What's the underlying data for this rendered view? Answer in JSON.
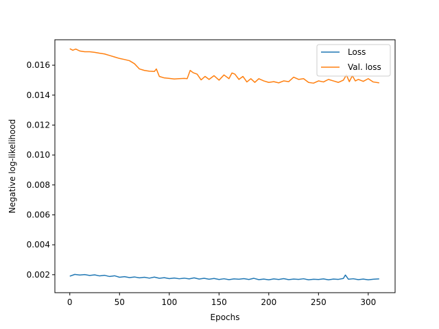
{
  "chart_data": {
    "type": "line",
    "xlabel": "Epochs",
    "ylabel": "Negative log-likelihood",
    "xlim": [
      -15,
      327
    ],
    "ylim": [
      0.0008,
      0.0177
    ],
    "xticks": [
      0,
      50,
      100,
      150,
      200,
      250,
      300
    ],
    "xtick_labels": [
      "0",
      "50",
      "100",
      "150",
      "200",
      "250",
      "300"
    ],
    "yticks": [
      0.002,
      0.004,
      0.006,
      0.008,
      0.01,
      0.012,
      0.014,
      0.016
    ],
    "ytick_labels": [
      "0.002",
      "0.004",
      "0.006",
      "0.008",
      "0.010",
      "0.012",
      "0.014",
      "0.016"
    ],
    "grid": false,
    "legend_position": "upper-right",
    "series": [
      {
        "name": "Loss",
        "color": "#1f77b4",
        "x": [
          0,
          5,
          10,
          15,
          20,
          25,
          30,
          35,
          40,
          45,
          50,
          55,
          60,
          65,
          70,
          75,
          80,
          85,
          90,
          95,
          100,
          105,
          110,
          115,
          120,
          125,
          130,
          135,
          140,
          145,
          150,
          155,
          160,
          165,
          170,
          175,
          180,
          185,
          190,
          195,
          200,
          205,
          210,
          215,
          220,
          225,
          230,
          235,
          240,
          245,
          250,
          255,
          260,
          265,
          270,
          275,
          277,
          280,
          285,
          290,
          295,
          300,
          305,
          311
        ],
        "y": [
          0.0019,
          0.00202,
          0.00198,
          0.00201,
          0.00195,
          0.00199,
          0.00192,
          0.00196,
          0.00188,
          0.00193,
          0.00183,
          0.00187,
          0.00181,
          0.00185,
          0.00179,
          0.00183,
          0.00177,
          0.00184,
          0.00176,
          0.0018,
          0.00174,
          0.00178,
          0.00173,
          0.00177,
          0.00172,
          0.00179,
          0.00171,
          0.00176,
          0.0017,
          0.00175,
          0.00168,
          0.00173,
          0.00167,
          0.00172,
          0.0017,
          0.00174,
          0.00168,
          0.00176,
          0.00167,
          0.00171,
          0.00166,
          0.00172,
          0.00168,
          0.00174,
          0.00167,
          0.00171,
          0.00169,
          0.00173,
          0.00166,
          0.0017,
          0.00168,
          0.00172,
          0.00166,
          0.00171,
          0.00169,
          0.00175,
          0.00198,
          0.0017,
          0.00173,
          0.00167,
          0.00171,
          0.00166,
          0.0017,
          0.00172
        ]
      },
      {
        "name": "Val. loss",
        "color": "#ff7f0e",
        "x": [
          0,
          3,
          6,
          10,
          15,
          20,
          25,
          30,
          35,
          40,
          45,
          50,
          55,
          60,
          65,
          70,
          75,
          80,
          85,
          87,
          90,
          95,
          100,
          105,
          110,
          115,
          118,
          121,
          124,
          128,
          132,
          136,
          140,
          145,
          150,
          155,
          160,
          163,
          166,
          170,
          174,
          178,
          182,
          186,
          190,
          195,
          200,
          205,
          210,
          215,
          220,
          225,
          230,
          235,
          240,
          245,
          250,
          255,
          260,
          265,
          270,
          275,
          278,
          281,
          284,
          287,
          290,
          295,
          300,
          305,
          311
        ],
        "y": [
          0.0171,
          0.017,
          0.01708,
          0.01695,
          0.0169,
          0.0169,
          0.01686,
          0.0168,
          0.01675,
          0.01665,
          0.01655,
          0.01645,
          0.01638,
          0.0163,
          0.0161,
          0.01575,
          0.01565,
          0.0156,
          0.01558,
          0.01575,
          0.01525,
          0.01515,
          0.01512,
          0.01508,
          0.0151,
          0.01512,
          0.0151,
          0.01565,
          0.0155,
          0.0154,
          0.01502,
          0.01525,
          0.01505,
          0.0153,
          0.015,
          0.01535,
          0.0151,
          0.01548,
          0.0154,
          0.01505,
          0.01525,
          0.01488,
          0.0151,
          0.01485,
          0.0151,
          0.01495,
          0.01485,
          0.0149,
          0.01482,
          0.01495,
          0.0149,
          0.0152,
          0.01505,
          0.0151,
          0.01485,
          0.0148,
          0.01495,
          0.01488,
          0.01505,
          0.01495,
          0.01485,
          0.015,
          0.01535,
          0.0149,
          0.0153,
          0.01495,
          0.01505,
          0.01492,
          0.0151,
          0.01488,
          0.01482
        ]
      }
    ]
  }
}
